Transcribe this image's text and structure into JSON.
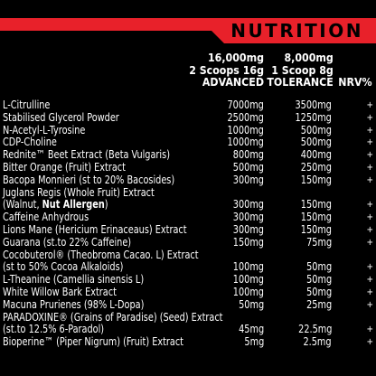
{
  "header": {
    "title": "NUTRITION",
    "bar_color": "#e8212a"
  },
  "columns": {
    "advanced": [
      "16,000mg",
      "2 Scoops 16g",
      "ADVANCED"
    ],
    "tolerance": [
      "8,000mg",
      "1 Scoop 8g",
      "TOLERANCE"
    ],
    "nrv": "NRV%"
  },
  "rows": [
    {
      "name": "L-Citrulline",
      "advanced": "7000mg",
      "tolerance": "3500mg",
      "nrv": "+"
    },
    {
      "name": "Stabilised Glycerol Powder",
      "advanced": "2500mg",
      "tolerance": "1250mg",
      "nrv": "+"
    },
    {
      "name": "N-Acetyl-L-Tyrosine",
      "advanced": "1000mg",
      "tolerance": "500mg",
      "nrv": "+"
    },
    {
      "name": "CDP-Choline",
      "advanced": "1000mg",
      "tolerance": "500mg",
      "nrv": "+"
    },
    {
      "name": "Rednite™ Beet Extract (Beta Vulgaris)",
      "advanced": "800mg",
      "tolerance": "400mg",
      "nrv": "+"
    },
    {
      "name": "Bitter Orange (Fruit) Extract",
      "advanced": "500mg",
      "tolerance": "250mg",
      "nrv": "+"
    },
    {
      "name": "Bacopa Monnieri (st to 20% Bacosides)",
      "advanced": "300mg",
      "tolerance": "150mg",
      "nrv": "+"
    },
    {
      "name": "Juglans Regis (Whole Fruit) Extract",
      "advanced": "",
      "tolerance": "",
      "nrv": ""
    },
    {
      "name": "(Walnut, ",
      "name_bold": "Nut Allergen",
      "name_after": ")",
      "advanced": "300mg",
      "tolerance": "150mg",
      "nrv": "+"
    },
    {
      "name": "Caffeine Anhydrous",
      "advanced": "300mg",
      "tolerance": "150mg",
      "nrv": "+"
    },
    {
      "name": "Lions Mane (Hericium Erinaceaus) Extract",
      "advanced": "300mg",
      "tolerance": "150mg",
      "nrv": "+"
    },
    {
      "name": "Guarana (st.to 22% Caffeine)",
      "advanced": "150mg",
      "tolerance": "75mg",
      "nrv": "+"
    },
    {
      "name": "Cocobuterol® (Theobroma Cacao. L) Extract",
      "advanced": "",
      "tolerance": "",
      "nrv": ""
    },
    {
      "name": "(st to 50% Cocoa Alkaloids)",
      "advanced": "100mg",
      "tolerance": "50mg",
      "nrv": "+"
    },
    {
      "name": "L-Theanine (Camellia sinensis L)",
      "advanced": "100mg",
      "tolerance": "50mg",
      "nrv": "+"
    },
    {
      "name": "White Willow Bark Extract",
      "advanced": "100mg",
      "tolerance": "50mg",
      "nrv": "+"
    },
    {
      "name": "Macuna Prurienes (98% L-Dopa)",
      "advanced": "50mg",
      "tolerance": "25mg",
      "nrv": "+"
    },
    {
      "name": "PARADOXINE® (Grains of Paradise) (Seed) Extract",
      "advanced": "",
      "tolerance": "",
      "nrv": ""
    },
    {
      "name": "(st.to 12.5% 6-Paradol)",
      "advanced": "45mg",
      "tolerance": "22.5mg",
      "nrv": "+"
    },
    {
      "name": "Bioperine™ (Piper Nigrum) (Fruit) Extract",
      "advanced": "5mg",
      "tolerance": "2.5mg",
      "nrv": "+"
    }
  ]
}
